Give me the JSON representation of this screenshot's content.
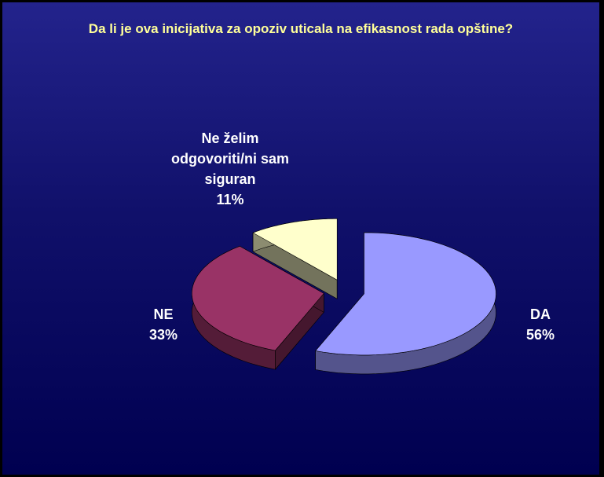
{
  "chart_data": {
    "type": "pie3d",
    "title": "Da li je ova inicijativa za opoziv uticala na efikasnost rada opštine?",
    "categories": [
      "DA",
      "NE",
      "Ne želim odgovoriti/ni sam siguran"
    ],
    "values": [
      56,
      33,
      11
    ],
    "value_labels": [
      "56%",
      "33%",
      "11%"
    ],
    "colors": [
      "#9999ff",
      "#993366",
      "#ffffcc"
    ]
  }
}
